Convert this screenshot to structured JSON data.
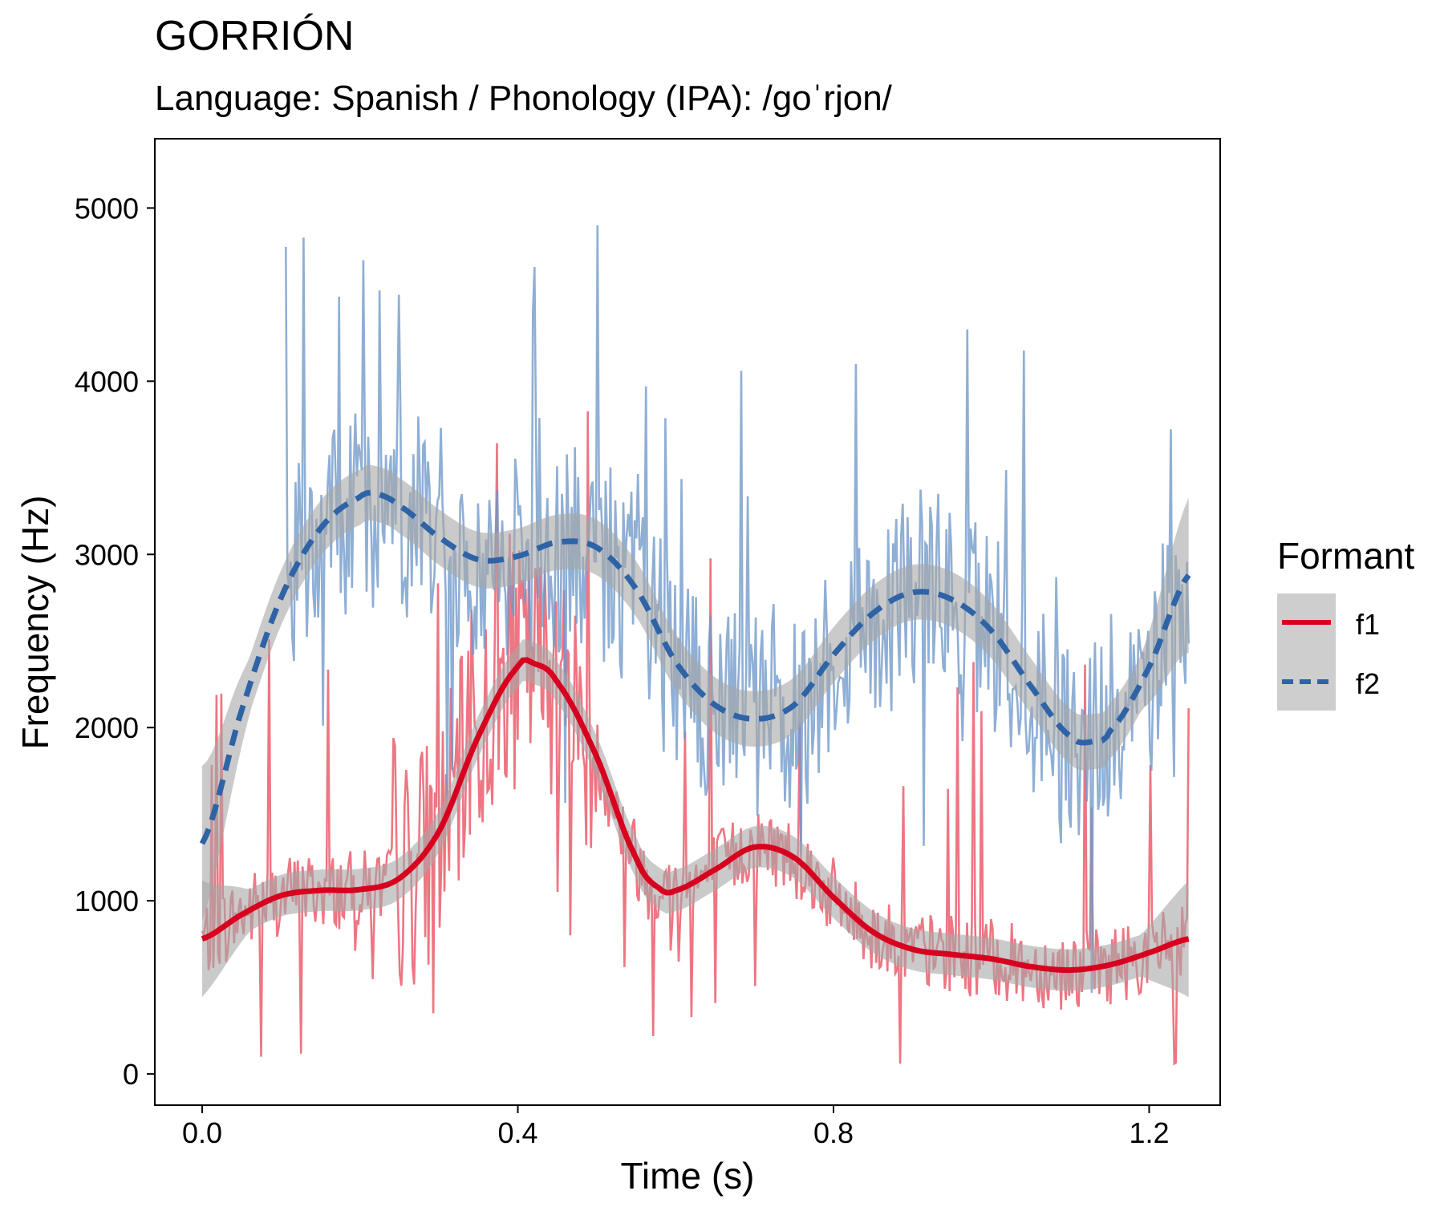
{
  "chart_data": {
    "type": "line",
    "title": "GORRIÓN",
    "subtitle": "Language: Spanish / Phonology (IPA): /goˈrjon/",
    "xlabel": "Time (s)",
    "ylabel": "Frequency (Hz)",
    "xlim": [
      -0.06,
      1.29
    ],
    "ylim": [
      -180,
      5400
    ],
    "xticks": [
      0.0,
      0.4,
      0.8,
      1.2
    ],
    "xtick_labels": [
      "0.0",
      "0.4",
      "0.8",
      "1.2"
    ],
    "yticks": [
      0,
      1000,
      2000,
      3000,
      4000,
      5000
    ],
    "ytick_labels": [
      "0",
      "1000",
      "2000",
      "3000",
      "4000",
      "5000"
    ],
    "grid": false,
    "legend": {
      "title": "Formant",
      "placement": "right",
      "entries": [
        "f1",
        "f2"
      ]
    },
    "series": [
      {
        "name": "f1",
        "color": "#d7001f",
        "raw_color": "#e8505f",
        "line_style": "solid",
        "smooth": {
          "x": [
            0.0,
            0.05,
            0.1,
            0.15,
            0.2,
            0.25,
            0.3,
            0.35,
            0.4,
            0.42,
            0.45,
            0.5,
            0.55,
            0.58,
            0.6,
            0.65,
            0.7,
            0.75,
            0.8,
            0.85,
            0.9,
            0.95,
            1.0,
            1.05,
            1.1,
            1.15,
            1.2,
            1.25
          ],
          "y": [
            780,
            920,
            1030,
            1060,
            1065,
            1130,
            1400,
            1950,
            2350,
            2370,
            2260,
            1830,
            1250,
            1070,
            1060,
            1180,
            1310,
            1250,
            1020,
            820,
            720,
            690,
            665,
            620,
            600,
            630,
            700,
            780
          ]
        },
        "band_halfwidth": 120,
        "raw": {
          "x_start": 0.0,
          "x_end": 1.25,
          "n": 620,
          "noise_base": 230,
          "spikes": 40,
          "spike_max": 1800
        }
      },
      {
        "name": "f2",
        "color": "#2e63a6",
        "raw_color": "#6f98c9",
        "line_style": "dashed",
        "smooth": {
          "x": [
            0.0,
            0.05,
            0.1,
            0.15,
            0.2,
            0.22,
            0.25,
            0.3,
            0.35,
            0.4,
            0.45,
            0.5,
            0.55,
            0.6,
            0.65,
            0.7,
            0.75,
            0.8,
            0.85,
            0.9,
            0.95,
            1.0,
            1.05,
            1.1,
            1.13,
            1.15,
            1.2,
            1.25
          ],
          "y": [
            1330,
            2100,
            2750,
            3150,
            3330,
            3350,
            3280,
            3100,
            2970,
            2990,
            3070,
            3040,
            2800,
            2380,
            2130,
            2050,
            2130,
            2420,
            2660,
            2780,
            2740,
            2560,
            2240,
            1950,
            1920,
            1980,
            2350,
            2880
          ]
        },
        "band_halfwidth": 160,
        "raw": {
          "x_start": 0.106,
          "x_end": 1.25,
          "n": 560,
          "noise_base": 450,
          "spikes": 45,
          "spike_max": 1900
        }
      }
    ]
  }
}
